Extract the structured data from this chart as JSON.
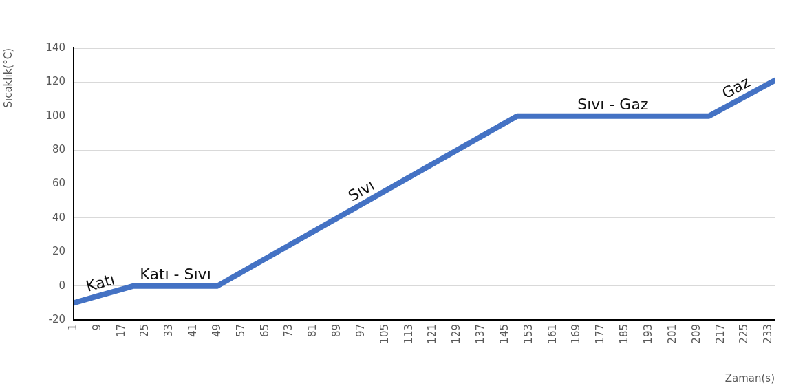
{
  "chart_data": {
    "type": "line",
    "xlabel": "Zaman(s)",
    "ylabel": "Sıcaklık(°C)",
    "x": [
      1,
      9,
      17,
      21,
      49,
      149,
      213,
      235
    ],
    "series": [
      {
        "color": "#4472c4",
        "values": [
          -10,
          -6,
          -2,
          0,
          0,
          100,
          100,
          121
        ]
      }
    ],
    "xlim": [
      1,
      235
    ],
    "xticks": [
      1,
      9,
      17,
      25,
      33,
      41,
      49,
      57,
      65,
      73,
      81,
      89,
      97,
      105,
      113,
      121,
      129,
      137,
      145,
      153,
      161,
      169,
      177,
      185,
      193,
      201,
      209,
      217,
      225,
      233
    ],
    "ylim": [
      -20,
      140
    ],
    "yticks": [
      -20,
      0,
      20,
      40,
      60,
      80,
      100,
      120,
      140
    ],
    "grid": "y",
    "legend": false,
    "marker": "none",
    "line_style": "solid",
    "annotations": [
      "Katı",
      "Katı - Sıvı",
      "Sıvı",
      "Sıvı - Gaz",
      "Gaz"
    ]
  }
}
